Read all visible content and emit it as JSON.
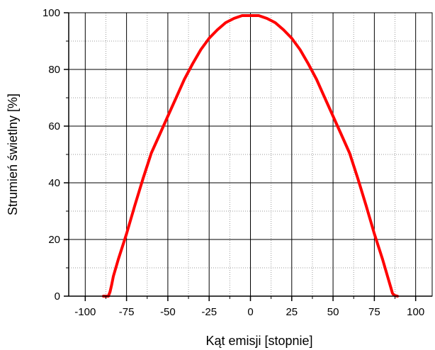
{
  "chart_data": {
    "type": "line",
    "xlabel": "Kąt emisji [stopnie]",
    "ylabel": "Strumień świetlny [%]",
    "xlim": [
      -110,
      110
    ],
    "ylim": [
      0,
      100
    ],
    "x_ticks": [
      -100,
      -75,
      -50,
      -25,
      0,
      25,
      50,
      75,
      100
    ],
    "y_ticks": [
      0,
      20,
      40,
      60,
      80,
      100
    ],
    "x_tick_labels": [
      "-100",
      "-75",
      "-50",
      "-25",
      "0",
      "25",
      "50",
      "75",
      "100"
    ],
    "y_tick_labels": [
      "0",
      "20",
      "40",
      "60",
      "80",
      "100"
    ],
    "grid": true,
    "legend": "none",
    "series": [
      {
        "color": "#ff0000",
        "x": [
          -89,
          -86,
          -85,
          -84,
          -83,
          -80,
          -75,
          -70,
          -65,
          -60,
          -55,
          -50,
          -45,
          -40,
          -35,
          -30,
          -25,
          -20,
          -15,
          -10,
          -5,
          0,
          5,
          10,
          15,
          20,
          25,
          30,
          35,
          40,
          45,
          50,
          55,
          60,
          65,
          70,
          75,
          80,
          83,
          85,
          86,
          87,
          89
        ],
        "y": [
          0,
          0,
          1.5,
          4,
          7,
          13,
          22,
          32,
          41.5,
          50.5,
          57,
          63.5,
          70,
          76.5,
          82,
          87,
          91,
          94,
          96.5,
          98,
          99,
          99,
          99,
          98,
          96.5,
          94,
          91,
          87,
          82,
          76.5,
          70,
          63.5,
          57,
          50.5,
          41.5,
          32,
          22,
          13,
          7,
          3,
          1,
          0.3,
          0
        ]
      }
    ]
  }
}
